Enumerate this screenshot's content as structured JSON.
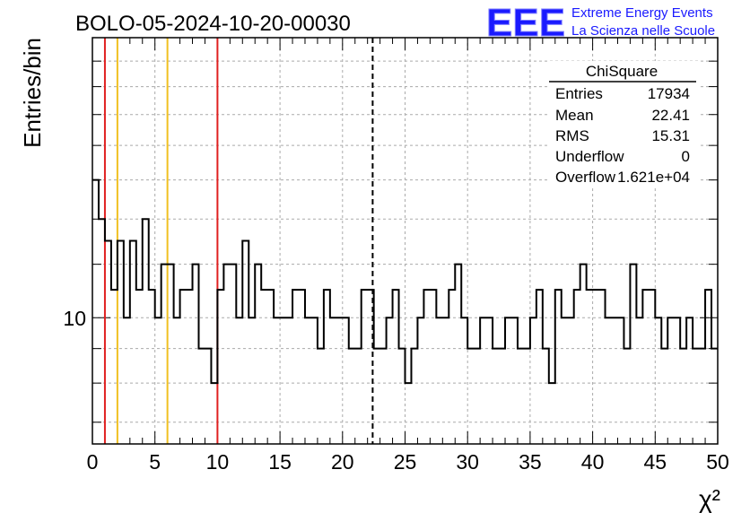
{
  "header": {
    "run_title": "BOLO-05-2024-10-20-00030",
    "logo_text": "EEE",
    "logo_line1": "Extreme Energy Events",
    "logo_line2": "La Scienza nelle Scuole"
  },
  "stats_box": {
    "title": "ChiSquare",
    "rows": [
      {
        "label": "Entries",
        "value": "17934"
      },
      {
        "label": "Mean",
        "value": "22.41"
      },
      {
        "label": "RMS",
        "value": "15.31"
      },
      {
        "label": "Underflow",
        "value": "0"
      },
      {
        "label": "Overflow",
        "value": "1.621e+04"
      }
    ]
  },
  "colors": {
    "red_line": "#e02020",
    "yellow_line": "#f0c020",
    "mean_line": "#000000",
    "logo_blue": "#1a1aff",
    "grid": "#aaaaaa"
  },
  "chart_data": {
    "type": "histogram",
    "title": "BOLO-05-2024-10-20-00030",
    "xlabel": "χ²",
    "ylabel": "Entries/bin",
    "xlim": [
      0,
      50
    ],
    "ylim": [
      6.5,
      26
    ],
    "log_y": true,
    "grid": true,
    "bin_width": 0.5,
    "x_ticks": [
      0,
      5,
      10,
      15,
      20,
      25,
      30,
      35,
      40,
      45,
      50
    ],
    "y_tick_labels": [
      {
        "value": 10,
        "label": "10"
      }
    ],
    "values": [
      16,
      14,
      13,
      11,
      13,
      10,
      13,
      11,
      14,
      11,
      10,
      12,
      12,
      10,
      11,
      11,
      12,
      9,
      9,
      8,
      11,
      12,
      12,
      10,
      13,
      10,
      12,
      11,
      11,
      10,
      10,
      10,
      11,
      11,
      10,
      10,
      9,
      11,
      10,
      10,
      10,
      9,
      9,
      11,
      11,
      9,
      9,
      10,
      11,
      9,
      8,
      9,
      10,
      11,
      11,
      10,
      10,
      11,
      12,
      10,
      9,
      9,
      10,
      10,
      9,
      9,
      10,
      10,
      9,
      9,
      10,
      11,
      9,
      8,
      11,
      10,
      10,
      11,
      12,
      11,
      11,
      11,
      10,
      10,
      10,
      9,
      12,
      10,
      11,
      11,
      10,
      9,
      10,
      10,
      9,
      10,
      9,
      9,
      11,
      9
    ],
    "vertical_lines": [
      {
        "x": 1,
        "color": "red"
      },
      {
        "x": 2,
        "color": "yellow"
      },
      {
        "x": 6,
        "color": "yellow"
      },
      {
        "x": 10,
        "color": "red"
      },
      {
        "x": 22.41,
        "color": "black-dashed"
      }
    ]
  }
}
